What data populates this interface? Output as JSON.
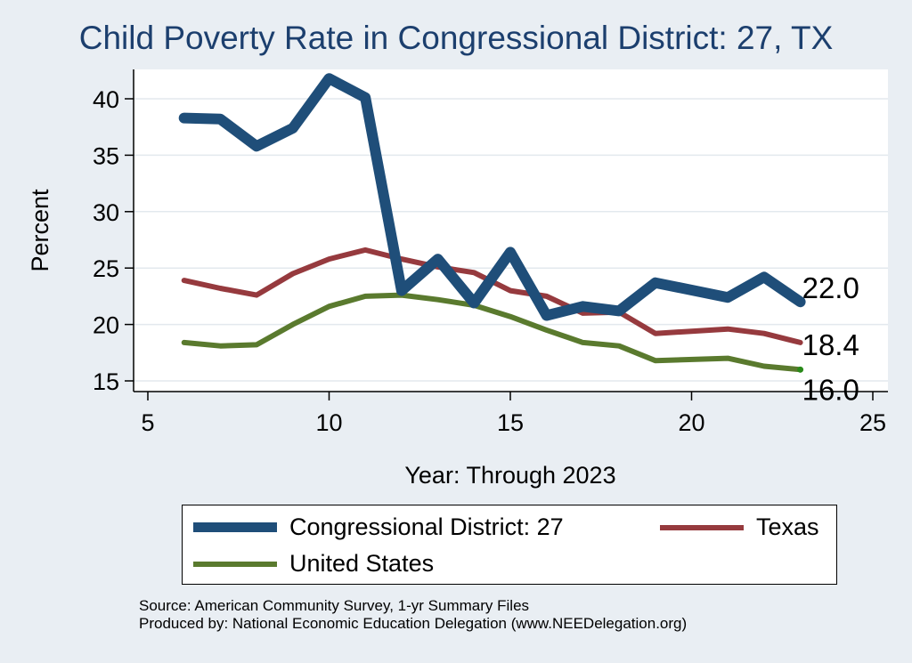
{
  "chart_data": {
    "type": "line",
    "title": "Child Poverty Rate in Congressional District:  27, TX",
    "xlabel": "Year: Through 2023",
    "ylabel": "Percent",
    "xlim": [
      5,
      25
    ],
    "ylim": [
      15,
      42
    ],
    "xticks": [
      5,
      10,
      15,
      20,
      25
    ],
    "yticks": [
      15,
      20,
      25,
      30,
      35,
      40
    ],
    "grid": "horizontal",
    "legend_position": "bottom",
    "series": [
      {
        "name": "Congressional District:  27",
        "color": "#1f4e79",
        "x": [
          6,
          7,
          8,
          9,
          10,
          11,
          12,
          13,
          14,
          15,
          16,
          17,
          18,
          19,
          21,
          22,
          23
        ],
        "values": [
          38.3,
          38.2,
          35.8,
          37.4,
          41.8,
          40.1,
          23.0,
          25.8,
          21.9,
          26.4,
          20.8,
          21.6,
          21.2,
          23.7,
          22.4,
          24.2,
          22.0
        ],
        "end_label": "22.0"
      },
      {
        "name": "Texas",
        "color": "#963a3e",
        "x": [
          6,
          7,
          8,
          9,
          10,
          11,
          12,
          13,
          14,
          15,
          16,
          17,
          18,
          19,
          21,
          22,
          23
        ],
        "values": [
          23.9,
          23.2,
          22.6,
          24.5,
          25.8,
          26.6,
          25.8,
          25.1,
          24.6,
          23.0,
          22.5,
          21.0,
          21.1,
          19.2,
          19.6,
          19.2,
          18.4
        ],
        "end_label": "18.4"
      },
      {
        "name": "United States",
        "color": "#5a7a2e",
        "x": [
          6,
          7,
          8,
          9,
          10,
          11,
          12,
          13,
          14,
          15,
          16,
          17,
          18,
          19,
          21,
          22,
          23
        ],
        "values": [
          18.4,
          18.1,
          18.2,
          20.0,
          21.6,
          22.5,
          22.6,
          22.2,
          21.7,
          20.7,
          19.5,
          18.4,
          18.1,
          16.8,
          17.0,
          16.3,
          16.0
        ],
        "end_label": "16.0"
      }
    ]
  },
  "source": {
    "line1": "Source: American Community Survey, 1-yr Summary Files",
    "line2": "Produced by: National Economic Education Delegation (www.NEEDelegation.org)"
  }
}
